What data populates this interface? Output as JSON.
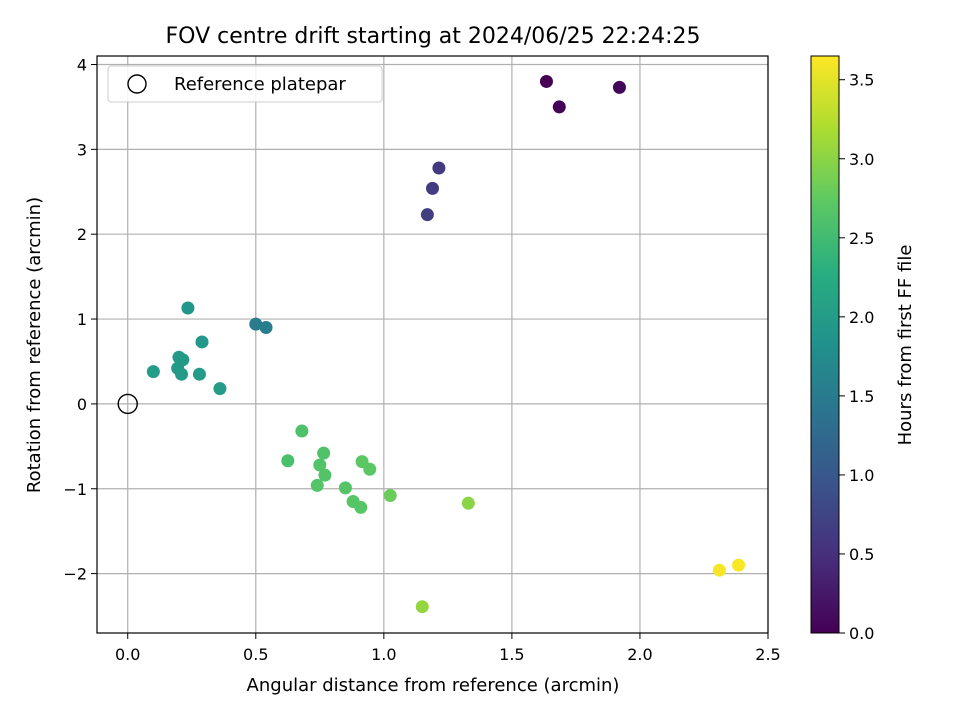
{
  "chart_data": {
    "type": "scatter",
    "title": "FOV centre drift starting at 2024/06/25 22:24:25",
    "xlabel": "Angular distance from reference (arcmin)",
    "ylabel": "Rotation from reference (arcmin)",
    "colorbar_label": "Hours from first FF file",
    "xlim": [
      -0.12,
      2.5
    ],
    "ylim": [
      -2.7,
      4.1
    ],
    "clim": [
      0.0,
      3.65
    ],
    "colormap": "viridis",
    "grid": true,
    "legend_position": "upper-left",
    "x_ticks": [
      0.0,
      0.5,
      1.0,
      1.5,
      2.0,
      2.5
    ],
    "x_tick_labels": [
      "0.0",
      "0.5",
      "1.0",
      "1.5",
      "2.0",
      "2.5"
    ],
    "y_ticks": [
      -2,
      -1,
      0,
      1,
      2,
      3,
      4
    ],
    "y_tick_labels": [
      "−2",
      "−1",
      "0",
      "1",
      "2",
      "3",
      "4"
    ],
    "c_ticks": [
      0.0,
      0.5,
      1.0,
      1.5,
      2.0,
      2.5,
      3.0,
      3.5
    ],
    "c_tick_labels": [
      "0.0",
      "0.5",
      "1.0",
      "1.5",
      "2.0",
      "2.5",
      "3.0",
      "3.5"
    ],
    "reference": {
      "label": "Reference platepar",
      "x": 0.0,
      "y": 0.0
    },
    "points": [
      {
        "x": 1.635,
        "y": 3.8,
        "hours": 0.0
      },
      {
        "x": 1.685,
        "y": 3.5,
        "hours": 0.02
      },
      {
        "x": 1.92,
        "y": 3.73,
        "hours": 0.05
      },
      {
        "x": 1.215,
        "y": 2.78,
        "hours": 0.62
      },
      {
        "x": 1.19,
        "y": 2.54,
        "hours": 0.65
      },
      {
        "x": 1.17,
        "y": 2.23,
        "hours": 0.68
      },
      {
        "x": 0.5,
        "y": 0.94,
        "hours": 1.5
      },
      {
        "x": 0.54,
        "y": 0.9,
        "hours": 1.55
      },
      {
        "x": 0.235,
        "y": 1.13,
        "hours": 1.9
      },
      {
        "x": 0.29,
        "y": 0.73,
        "hours": 1.92
      },
      {
        "x": 0.2,
        "y": 0.55,
        "hours": 1.95
      },
      {
        "x": 0.215,
        "y": 0.52,
        "hours": 1.96
      },
      {
        "x": 0.195,
        "y": 0.42,
        "hours": 1.97
      },
      {
        "x": 0.21,
        "y": 0.35,
        "hours": 1.98
      },
      {
        "x": 0.1,
        "y": 0.38,
        "hours": 2.0
      },
      {
        "x": 0.28,
        "y": 0.35,
        "hours": 1.99
      },
      {
        "x": 0.36,
        "y": 0.18,
        "hours": 2.0
      },
      {
        "x": 0.68,
        "y": -0.32,
        "hours": 2.6
      },
      {
        "x": 0.625,
        "y": -0.67,
        "hours": 2.58
      },
      {
        "x": 0.765,
        "y": -0.58,
        "hours": 2.62
      },
      {
        "x": 0.75,
        "y": -0.72,
        "hours": 2.63
      },
      {
        "x": 0.77,
        "y": -0.84,
        "hours": 2.64
      },
      {
        "x": 0.74,
        "y": -0.96,
        "hours": 2.65
      },
      {
        "x": 0.85,
        "y": -0.99,
        "hours": 2.66
      },
      {
        "x": 0.88,
        "y": -1.15,
        "hours": 2.67
      },
      {
        "x": 0.91,
        "y": -1.22,
        "hours": 2.68
      },
      {
        "x": 0.915,
        "y": -0.68,
        "hours": 2.7
      },
      {
        "x": 0.945,
        "y": -0.77,
        "hours": 2.71
      },
      {
        "x": 1.025,
        "y": -1.08,
        "hours": 2.8
      },
      {
        "x": 1.33,
        "y": -1.17,
        "hours": 3.0
      },
      {
        "x": 1.15,
        "y": -2.39,
        "hours": 3.05
      },
      {
        "x": 2.31,
        "y": -1.96,
        "hours": 3.62
      },
      {
        "x": 2.385,
        "y": -1.9,
        "hours": 3.63
      }
    ]
  }
}
